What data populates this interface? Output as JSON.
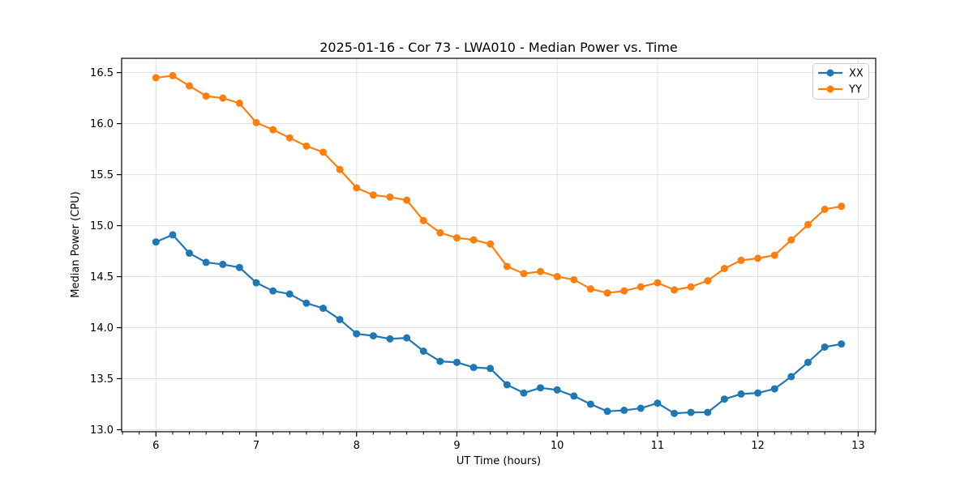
{
  "title": "2025-01-16 - Cor 73 - LWA010 - Median Power vs. Time",
  "colors": {
    "xx_series": "#1f77b4",
    "yy_series": "#ff7f0e",
    "grid": "#e0e0e0",
    "spine": "#000000",
    "legend_border": "#cccccc",
    "background": "#ffffff"
  },
  "legend": {
    "items": [
      {
        "label": "XX",
        "color": "#1f77b4"
      },
      {
        "label": "YY",
        "color": "#ff7f0e"
      }
    ],
    "position": "upper right"
  },
  "chart_data": {
    "type": "line",
    "title": "2025-01-16 - Cor 73 - LWA010 - Median Power vs. Time",
    "xlabel": "UT Time (hours)",
    "ylabel": "Median Power (CPU)",
    "xlim": [
      5.658,
      13.175
    ],
    "ylim": [
      12.98,
      16.64
    ],
    "x_ticks": [
      6,
      7,
      8,
      9,
      10,
      11,
      12,
      13
    ],
    "y_ticks": [
      13.0,
      13.5,
      14.0,
      14.5,
      15.0,
      15.5,
      16.0,
      16.5
    ],
    "x_minor_tick_step": 0.16667,
    "grid": true,
    "legend_position": "upper right",
    "marker": "o",
    "x": [
      6.0,
      6.167,
      6.333,
      6.5,
      6.667,
      6.833,
      7.0,
      7.167,
      7.333,
      7.5,
      7.667,
      7.833,
      8.0,
      8.167,
      8.333,
      8.5,
      8.667,
      8.833,
      9.0,
      9.167,
      9.333,
      9.5,
      9.667,
      9.833,
      10.0,
      10.167,
      10.333,
      10.5,
      10.667,
      10.833,
      11.0,
      11.167,
      11.333,
      11.5,
      11.667,
      11.833,
      12.0,
      12.167,
      12.333,
      12.5,
      12.667,
      12.833
    ],
    "series": [
      {
        "name": "XX",
        "color": "#1f77b4",
        "values": [
          14.84,
          14.91,
          14.73,
          14.64,
          14.62,
          14.59,
          14.44,
          14.36,
          14.33,
          14.24,
          14.19,
          14.08,
          13.94,
          13.92,
          13.89,
          13.9,
          13.77,
          13.67,
          13.66,
          13.61,
          13.6,
          13.44,
          13.36,
          13.41,
          13.39,
          13.33,
          13.25,
          13.18,
          13.19,
          13.21,
          13.26,
          13.16,
          13.17,
          13.17,
          13.3,
          13.35,
          13.36,
          13.4,
          13.52,
          13.66,
          13.81,
          13.84
        ]
      },
      {
        "name": "YY",
        "color": "#ff7f0e",
        "values": [
          16.45,
          16.47,
          16.37,
          16.27,
          16.25,
          16.2,
          16.01,
          15.94,
          15.86,
          15.78,
          15.72,
          15.55,
          15.37,
          15.3,
          15.28,
          15.25,
          15.05,
          14.93,
          14.88,
          14.86,
          14.82,
          14.6,
          14.53,
          14.55,
          14.5,
          14.47,
          14.38,
          14.34,
          14.36,
          14.4,
          14.44,
          14.37,
          14.4,
          14.46,
          14.58,
          14.66,
          14.68,
          14.71,
          14.86,
          15.01,
          15.16,
          15.19
        ]
      }
    ]
  }
}
